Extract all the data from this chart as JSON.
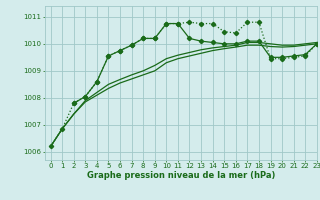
{
  "title": "Graphe pression niveau de la mer (hPa)",
  "bg_color": "#d4ecec",
  "grid_color": "#a0c8c8",
  "line_color": "#1a6b1a",
  "xlim": [
    -0.5,
    23
  ],
  "ylim": [
    1005.7,
    1011.4
  ],
  "yticks": [
    1006,
    1007,
    1008,
    1009,
    1010,
    1011
  ],
  "xticks": [
    0,
    1,
    2,
    3,
    4,
    5,
    6,
    7,
    8,
    9,
    10,
    11,
    12,
    13,
    14,
    15,
    16,
    17,
    18,
    19,
    20,
    21,
    22,
    23
  ],
  "series_main_x": [
    0,
    1,
    2,
    3,
    4,
    5,
    6,
    7,
    8,
    9,
    10,
    11,
    12,
    13,
    14,
    15,
    16,
    17,
    18,
    19,
    20,
    21,
    22,
    23
  ],
  "series_main_y": [
    1006.2,
    1006.85,
    1007.8,
    1008.05,
    1008.6,
    1009.55,
    1009.75,
    1009.95,
    1010.2,
    1010.2,
    1010.75,
    1010.75,
    1010.8,
    1010.75,
    1010.75,
    1010.45,
    1010.4,
    1010.8,
    1010.8,
    1009.45,
    1009.45,
    1009.5,
    1009.55,
    1010.0
  ],
  "series_a_x": [
    0,
    1,
    2,
    3,
    4,
    5,
    6,
    7,
    8,
    9,
    10,
    11,
    12,
    13,
    14,
    15,
    16,
    17,
    18,
    19,
    20,
    21,
    22,
    23
  ],
  "series_a_y": [
    1006.2,
    1006.85,
    1007.4,
    1007.85,
    1008.1,
    1008.35,
    1008.55,
    1008.7,
    1008.85,
    1009.0,
    1009.3,
    1009.45,
    1009.55,
    1009.65,
    1009.75,
    1009.82,
    1009.88,
    1009.95,
    1009.95,
    1009.9,
    1009.88,
    1009.9,
    1009.95,
    1010.0
  ],
  "series_b_x": [
    0,
    1,
    2,
    3,
    4,
    5,
    6,
    7,
    8,
    9,
    10,
    11,
    12,
    13,
    14,
    15,
    16,
    17,
    18,
    19,
    20,
    21,
    22,
    23
  ],
  "series_b_y": [
    1006.2,
    1006.85,
    1007.4,
    1007.9,
    1008.2,
    1008.5,
    1008.68,
    1008.85,
    1009.0,
    1009.2,
    1009.45,
    1009.58,
    1009.68,
    1009.78,
    1009.85,
    1009.9,
    1009.95,
    1010.05,
    1010.05,
    1010.0,
    1009.95,
    1009.95,
    1010.0,
    1010.05
  ],
  "series_c_x": [
    2,
    3,
    4,
    5,
    6,
    7,
    8,
    9,
    10,
    11,
    12,
    13,
    14,
    15,
    16,
    17,
    18,
    19,
    20,
    21,
    22,
    23
  ],
  "series_c_y": [
    1007.8,
    1008.05,
    1008.6,
    1009.55,
    1009.75,
    1009.95,
    1010.2,
    1010.2,
    1010.75,
    1010.75,
    1010.2,
    1010.1,
    1010.05,
    1010.0,
    1010.0,
    1010.1,
    1010.1,
    1009.5,
    1009.5,
    1009.55,
    1009.6,
    1010.0
  ]
}
